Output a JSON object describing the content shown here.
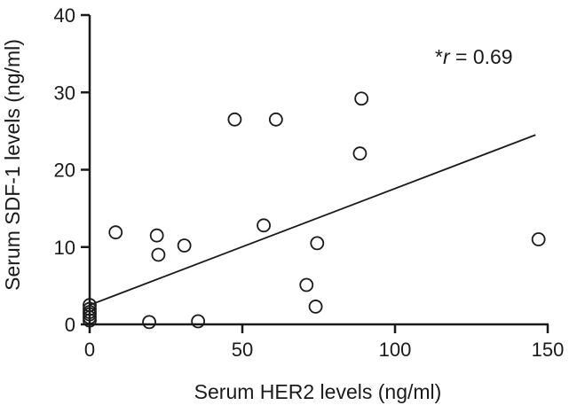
{
  "chart_data": {
    "type": "scatter",
    "xlabel": "Serum HER2 levels (ng/ml)",
    "ylabel": "Serum SDF-1 levels (ng/ml)",
    "xlim": [
      0,
      150
    ],
    "ylim": [
      0,
      40
    ],
    "xticks": [
      0,
      50,
      100,
      150
    ],
    "yticks": [
      0,
      10,
      20,
      30,
      40
    ],
    "grid": false,
    "annotation": {
      "prefix": "*",
      "variable": "r",
      "suffix": " = 0.69"
    },
    "points": [
      {
        "x": 0,
        "y": 0.5
      },
      {
        "x": 0,
        "y": 0.9
      },
      {
        "x": 0,
        "y": 1.3
      },
      {
        "x": 0,
        "y": 1.6
      },
      {
        "x": 0,
        "y": 2.0
      },
      {
        "x": 0,
        "y": 2.5
      },
      {
        "x": 8.5,
        "y": 11.9
      },
      {
        "x": 19.5,
        "y": 0.3
      },
      {
        "x": 22,
        "y": 11.5
      },
      {
        "x": 22.5,
        "y": 9.0
      },
      {
        "x": 31,
        "y": 10.2
      },
      {
        "x": 35.5,
        "y": 0.4
      },
      {
        "x": 47.5,
        "y": 26.5
      },
      {
        "x": 57,
        "y": 12.8
      },
      {
        "x": 61,
        "y": 26.5
      },
      {
        "x": 71,
        "y": 5.1
      },
      {
        "x": 74,
        "y": 2.3
      },
      {
        "x": 74.5,
        "y": 10.5
      },
      {
        "x": 88.5,
        "y": 22.1
      },
      {
        "x": 89,
        "y": 29.2
      },
      {
        "x": 147,
        "y": 11.0
      }
    ],
    "regression_line": {
      "x": [
        0,
        146
      ],
      "y": [
        2.5,
        24.5
      ]
    },
    "marker": {
      "shape": "open-circle",
      "color": "#1a1a1a"
    }
  }
}
